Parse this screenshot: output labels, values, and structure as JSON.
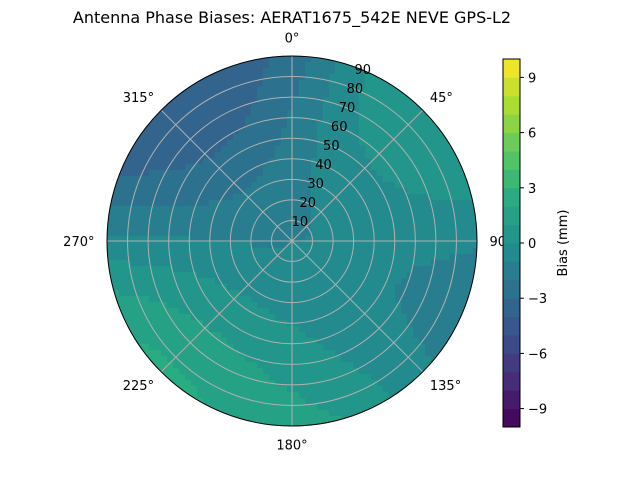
{
  "chart_data": {
    "type": "heatmap",
    "projection": "polar",
    "title": "Antenna Phase Biases: AERAT1675_542E  NEVE GPS-L2",
    "theta_zero_location": "N",
    "theta_direction": "clockwise",
    "theta_tick_labels": [
      "0°",
      "45°",
      "90°",
      "135°",
      "180°",
      "225°",
      "270°",
      "315°"
    ],
    "theta_tick_values": [
      0,
      45,
      90,
      135,
      180,
      225,
      270,
      315
    ],
    "radial_tick_values": [
      10,
      20,
      30,
      40,
      50,
      60,
      70,
      80,
      90
    ],
    "radial_tick_labels": [
      "10",
      "20",
      "30",
      "40",
      "50",
      "60",
      "70",
      "80",
      "90"
    ],
    "rlim": [
      0,
      90
    ],
    "grid": true,
    "colorbar": {
      "label": "Bias (mm)",
      "range": [
        -10,
        10
      ],
      "levels": 20,
      "colormap": "viridis",
      "tick_values": [
        -9,
        -6,
        -3,
        0,
        3,
        6,
        9
      ],
      "tick_labels": [
        "−9",
        "−6",
        "−3",
        "0",
        "3",
        "6",
        "9"
      ]
    },
    "bias_samples": [
      {
        "azimuth": 0,
        "zenith": 20,
        "bias": -1.5
      },
      {
        "azimuth": 90,
        "zenith": 30,
        "bias": -2.0
      },
      {
        "azimuth": 180,
        "zenith": 40,
        "bias": -1.5
      },
      {
        "azimuth": 270,
        "zenith": 50,
        "bias": -1.5
      },
      {
        "azimuth": 320,
        "zenith": 80,
        "bias": -5.0
      },
      {
        "azimuth": 300,
        "zenith": 85,
        "bias": -4.0
      },
      {
        "azimuth": 345,
        "zenith": 85,
        "bias": -3.0
      },
      {
        "azimuth": 110,
        "zenith": 70,
        "bias": -3.0
      },
      {
        "azimuth": 60,
        "zenith": 60,
        "bias": 2.0
      },
      {
        "azimuth": 45,
        "zenith": 75,
        "bias": 1.0
      },
      {
        "azimuth": 230,
        "zenith": 88,
        "bias": 4.5
      },
      {
        "azimuth": 180,
        "zenith": 85,
        "bias": 2.5
      },
      {
        "azimuth": 200,
        "zenith": 65,
        "bias": 1.5
      },
      {
        "azimuth": 250,
        "zenith": 75,
        "bias": 1.0
      },
      {
        "azimuth": 135,
        "zenith": 55,
        "bias": 0.5
      }
    ]
  }
}
